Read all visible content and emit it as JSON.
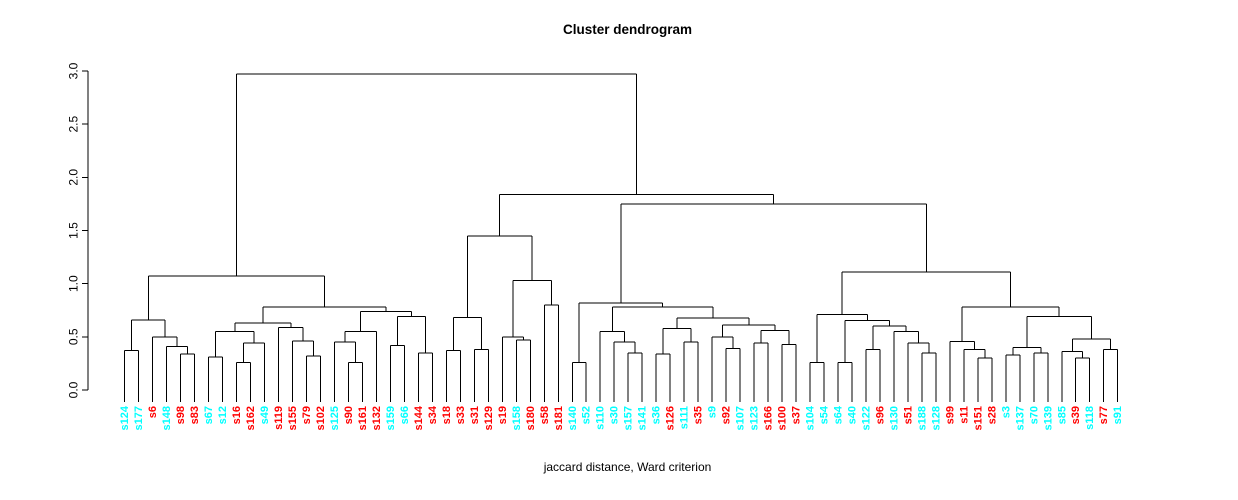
{
  "chart_data": {
    "type": "dendrogram",
    "title": "Cluster dendrogram",
    "xlabel": "jaccard distance, Ward criterion",
    "ylabel": "",
    "ylim": [
      0,
      3
    ],
    "yticks": [
      0,
      0.5,
      1,
      1.5,
      2,
      2.5,
      3
    ],
    "ytick_labels": [
      "0.0",
      "0.5",
      "1.0",
      "1.5",
      "2.0",
      "2.5",
      "3.0"
    ],
    "grid": false,
    "legend": "none",
    "line_color": "#000000",
    "leaf_colors": {
      "cyan": "#00ffff",
      "red": "#ff0000"
    },
    "leaves": [
      {
        "label": "s124",
        "color": "cyan"
      },
      {
        "label": "s177",
        "color": "cyan"
      },
      {
        "label": "s6",
        "color": "red"
      },
      {
        "label": "s148",
        "color": "cyan"
      },
      {
        "label": "s98",
        "color": "red"
      },
      {
        "label": "s83",
        "color": "red"
      },
      {
        "label": "s67",
        "color": "cyan"
      },
      {
        "label": "s12",
        "color": "cyan"
      },
      {
        "label": "s16",
        "color": "red"
      },
      {
        "label": "s162",
        "color": "red"
      },
      {
        "label": "s49",
        "color": "cyan"
      },
      {
        "label": "s119",
        "color": "red"
      },
      {
        "label": "s155",
        "color": "red"
      },
      {
        "label": "s79",
        "color": "red"
      },
      {
        "label": "s102",
        "color": "red"
      },
      {
        "label": "s125",
        "color": "cyan"
      },
      {
        "label": "s90",
        "color": "red"
      },
      {
        "label": "s161",
        "color": "red"
      },
      {
        "label": "s132",
        "color": "red"
      },
      {
        "label": "s159",
        "color": "cyan"
      },
      {
        "label": "s66",
        "color": "cyan"
      },
      {
        "label": "s144",
        "color": "red"
      },
      {
        "label": "s34",
        "color": "red"
      },
      {
        "label": "s18",
        "color": "red"
      },
      {
        "label": "s33",
        "color": "red"
      },
      {
        "label": "s31",
        "color": "red"
      },
      {
        "label": "s129",
        "color": "red"
      },
      {
        "label": "s19",
        "color": "red"
      },
      {
        "label": "s158",
        "color": "cyan"
      },
      {
        "label": "s180",
        "color": "red"
      },
      {
        "label": "s58",
        "color": "red"
      },
      {
        "label": "s181",
        "color": "red"
      },
      {
        "label": "s140",
        "color": "cyan"
      },
      {
        "label": "s52",
        "color": "cyan"
      },
      {
        "label": "s110",
        "color": "cyan"
      },
      {
        "label": "s30",
        "color": "cyan"
      },
      {
        "label": "s157",
        "color": "cyan"
      },
      {
        "label": "s141",
        "color": "cyan"
      },
      {
        "label": "s36",
        "color": "cyan"
      },
      {
        "label": "s126",
        "color": "red"
      },
      {
        "label": "s111",
        "color": "cyan"
      },
      {
        "label": "s35",
        "color": "red"
      },
      {
        "label": "s9",
        "color": "cyan"
      },
      {
        "label": "s92",
        "color": "red"
      },
      {
        "label": "s107",
        "color": "cyan"
      },
      {
        "label": "s123",
        "color": "cyan"
      },
      {
        "label": "s166",
        "color": "red"
      },
      {
        "label": "s100",
        "color": "red"
      },
      {
        "label": "s37",
        "color": "red"
      },
      {
        "label": "s104",
        "color": "cyan"
      },
      {
        "label": "s54",
        "color": "cyan"
      },
      {
        "label": "s64",
        "color": "cyan"
      },
      {
        "label": "s40",
        "color": "cyan"
      },
      {
        "label": "s122",
        "color": "cyan"
      },
      {
        "label": "s96",
        "color": "red"
      },
      {
        "label": "s130",
        "color": "cyan"
      },
      {
        "label": "s51",
        "color": "red"
      },
      {
        "label": "s188",
        "color": "cyan"
      },
      {
        "label": "s128",
        "color": "cyan"
      },
      {
        "label": "s99",
        "color": "red"
      },
      {
        "label": "s11",
        "color": "red"
      },
      {
        "label": "s151",
        "color": "red"
      },
      {
        "label": "s28",
        "color": "red"
      },
      {
        "label": "s3",
        "color": "cyan"
      },
      {
        "label": "s137",
        "color": "cyan"
      },
      {
        "label": "s70",
        "color": "cyan"
      },
      {
        "label": "s139",
        "color": "cyan"
      },
      {
        "label": "s85",
        "color": "cyan"
      },
      {
        "label": "s39",
        "color": "red"
      },
      {
        "label": "s118",
        "color": "cyan"
      },
      {
        "label": "s77",
        "color": "red"
      },
      {
        "label": "s91",
        "color": "cyan"
      }
    ],
    "merges": [
      2.97,
      [
        1.07,
        [
          0.66,
          [
            0.37,
            "s124",
            "s177"
          ],
          [
            0.5,
            "s6",
            [
              0.41,
              "s148",
              [
                0.34,
                "s98",
                "s83"
              ]
            ]
          ]
        ],
        [
          0.78,
          [
            0.63,
            [
              0.55,
              [
                0.31,
                "s67",
                "s12"
              ],
              [
                0.44,
                [
                  0.26,
                  "s16",
                  "s162"
                ],
                "s49"
              ]
            ],
            [
              0.59,
              "s119",
              [
                0.46,
                "s155",
                [
                  0.32,
                  "s79",
                  "s102"
                ]
              ]
            ]
          ],
          [
            0.74,
            [
              0.55,
              [
                0.45,
                "s125",
                [
                  0.26,
                  "s90",
                  "s161"
                ]
              ],
              "s132"
            ],
            [
              0.69,
              [
                0.42,
                "s159",
                "s66"
              ],
              [
                0.35,
                "s144",
                "s34"
              ]
            ]
          ]
        ]
      ],
      [
        1.84,
        [
          1.45,
          [
            0.68,
            [
              0.37,
              "s18",
              "s33"
            ],
            [
              0.38,
              "s31",
              "s129"
            ]
          ],
          [
            1.03,
            [
              0.5,
              "s19",
              [
                0.47,
                "s158",
                "s180"
              ]
            ],
            [
              0.8,
              "s58",
              "s181"
            ]
          ]
        ],
        [
          1.75,
          [
            0.82,
            [
              0.26,
              "s140",
              "s52"
            ],
            [
              0.78,
              [
                0.55,
                "s110",
                [
                  0.45,
                  "s30",
                  [
                    0.35,
                    "s157",
                    "s141"
                  ]
                ]
              ],
              [
                0.675,
                [
                  0.58,
                  [
                    0.34,
                    "s36",
                    "s126"
                  ],
                  [
                    0.45,
                    "s111",
                    "s35"
                  ]
                ],
                [
                  0.61,
                  [
                    0.5,
                    "s9",
                    [
                      0.39,
                      "s92",
                      "s107"
                    ]
                  ],
                  [
                    0.56,
                    [
                      0.44,
                      "s123",
                      "s166"
                    ],
                    [
                      0.43,
                      "s100",
                      "s37"
                    ]
                  ]
                ]
              ]
            ]
          ],
          [
            1.11,
            [
              0.71,
              [
                0.26,
                "s104",
                "s54"
              ],
              [
                0.655,
                [
                  0.26,
                  "s64",
                  "s40"
                ],
                [
                  0.6,
                  [
                    0.38,
                    "s122",
                    "s96"
                  ],
                  [
                    0.55,
                    "s130",
                    [
                      0.44,
                      "s51",
                      [
                        0.35,
                        "s188",
                        "s128"
                      ]
                    ]
                  ]
                ]
              ]
            ],
            [
              0.78,
              [
                0.455,
                "s99",
                [
                  0.38,
                  "s11",
                  [
                    0.3,
                    "s151",
                    "s28"
                  ]
                ]
              ],
              [
                0.69,
                [
                  0.4,
                  [
                    0.33,
                    "s3",
                    "s137"
                  ],
                  [
                    0.35,
                    "s70",
                    "s139"
                  ]
                ],
                [
                  0.48,
                  [
                    0.36,
                    "s85",
                    [
                      0.3,
                      "s39",
                      "s118"
                    ]
                  ],
                  [
                    0.38,
                    "s77",
                    "s91"
                  ]
                ]
              ]
            ]
          ]
        ]
      ]
    ]
  }
}
